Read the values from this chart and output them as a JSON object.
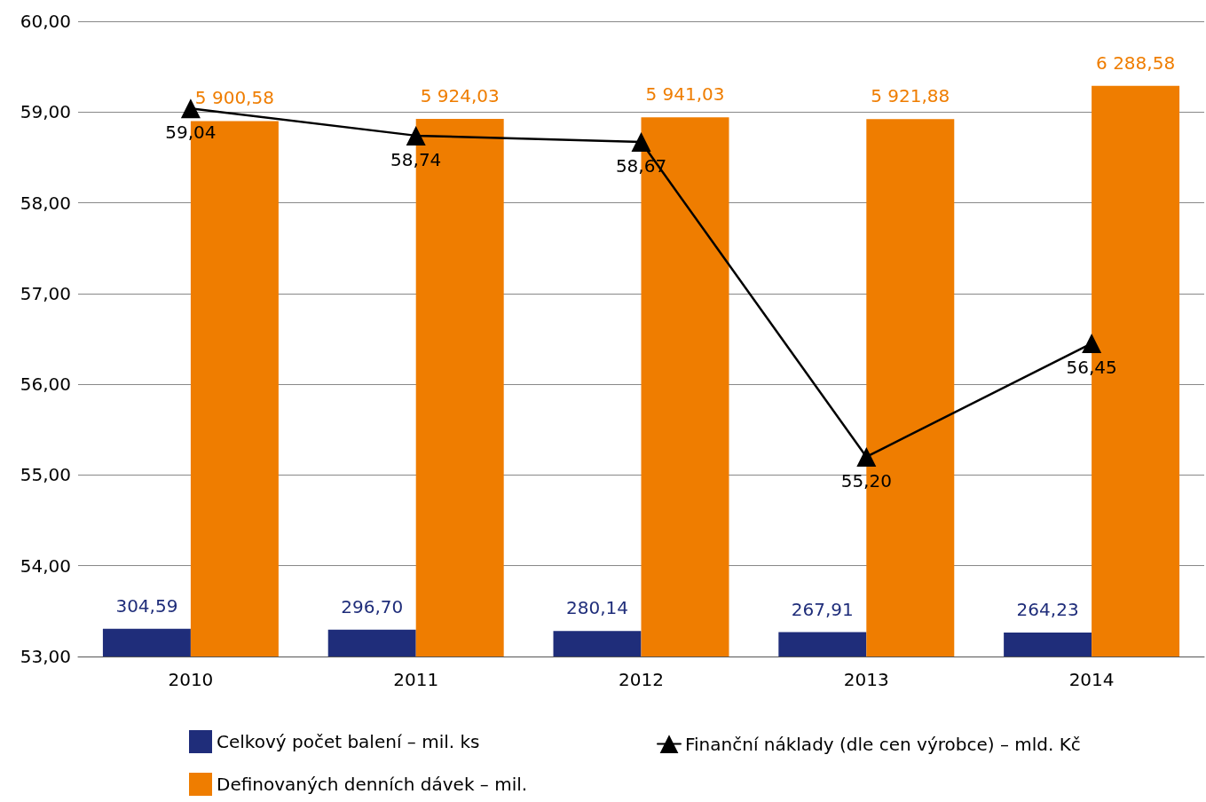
{
  "chart_data": {
    "type": "bar",
    "categories": [
      "2010",
      "2011",
      "2012",
      "2013",
      "2014"
    ],
    "series": [
      {
        "name": "Celkový počet balení – mil. ks",
        "color": "#1f2d7a",
        "axis": "y2",
        "values": [
          304.59,
          296.7,
          280.14,
          267.91,
          264.23
        ],
        "value_labels": [
          "304,59",
          "296,70",
          "280,14",
          "267,91",
          "264,23"
        ]
      },
      {
        "name": "Definovaných denních dávek – mil.",
        "color": "#ef7d00",
        "axis": "y2",
        "values": [
          5900.58,
          5924.03,
          5941.03,
          5921.88,
          6288.58
        ],
        "value_labels": [
          "5 900,58",
          "5 924,03",
          "5 941,03",
          "5 921,88",
          "6 288,58"
        ]
      },
      {
        "name": "Finanční náklady (dle cen výrobce) – mld. Kč",
        "type": "line",
        "color": "#000000",
        "marker": "triangle",
        "values": [
          59.04,
          58.74,
          58.67,
          55.2,
          56.45
        ],
        "value_labels": [
          "59,04",
          "58,74",
          "58,67",
          "55,20",
          "56,45"
        ]
      }
    ],
    "ylim": [
      53,
      60
    ],
    "yticks": [
      {
        "value": 53,
        "label": "53,00"
      },
      {
        "value": 54,
        "label": "54,00"
      },
      {
        "value": 55,
        "label": "55,00"
      },
      {
        "value": 56,
        "label": "56,00"
      },
      {
        "value": 57,
        "label": "57,00"
      },
      {
        "value": 58,
        "label": "58,00"
      },
      {
        "value": 59,
        "label": "59,00"
      },
      {
        "value": 60,
        "label": "60,00"
      }
    ],
    "y2lim": [
      0,
      7000
    ],
    "grid": "y",
    "legend": "bottom"
  }
}
